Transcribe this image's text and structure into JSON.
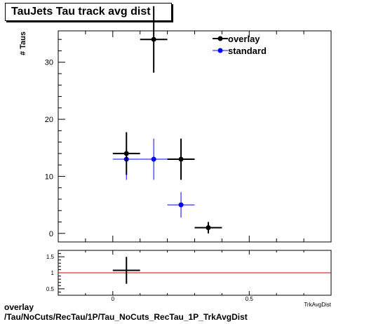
{
  "title": "TauJets Tau track avg dist",
  "footer": {
    "line1": "overlay",
    "line2": "/Tau/NoCuts/RecTau/1P/Tau_NoCuts_RecTau_1P_TrkAvgDist"
  },
  "chart_data": [
    {
      "type": "scatter",
      "title": "TauJets Tau track avg dist",
      "ylabel": "# Taus",
      "xlabel": "TrkAvgDist",
      "xlim": [
        -0.2,
        0.8
      ],
      "ylim": [
        -1.5,
        35.5
      ],
      "yticks": [
        0,
        10,
        20,
        30
      ],
      "legend_position": "top-right",
      "series": [
        {
          "name": "overlay",
          "color": "#000000",
          "points": [
            {
              "x": 0.05,
              "y": 14,
              "xerr": 0.05,
              "yerr": 3.74
            },
            {
              "x": 0.15,
              "y": 34,
              "xerr": 0.05,
              "yerr": 5.83
            },
            {
              "x": 0.25,
              "y": 13,
              "xerr": 0.05,
              "yerr": 3.61
            },
            {
              "x": 0.35,
              "y": 1,
              "xerr": 0.05,
              "yerr": 1.0
            }
          ]
        },
        {
          "name": "standard",
          "color": "#0000ff",
          "points": [
            {
              "x": 0.05,
              "y": 13,
              "xerr": 0.05,
              "yerr": 3.61
            },
            {
              "x": 0.15,
              "y": 13,
              "xerr": 0.05,
              "yerr": 3.61
            },
            {
              "x": 0.25,
              "y": 5,
              "xerr": 0.05,
              "yerr": 2.24
            }
          ]
        }
      ]
    },
    {
      "type": "scatter",
      "xlabel": "TrkAvgDist",
      "xlim": [
        -0.2,
        0.8
      ],
      "ylim": [
        0.3,
        1.7
      ],
      "xticks": [
        {
          "v": 0,
          "label": "0"
        },
        {
          "v": 0.5,
          "label": "0.5"
        }
      ],
      "yticks": [
        {
          "v": 0.5,
          "label": "0.5"
        },
        {
          "v": 1,
          "label": "1"
        },
        {
          "v": 1.5,
          "label": "1.5"
        }
      ],
      "reference_line": {
        "y": 1,
        "color": "#cc0000"
      },
      "points": [
        {
          "x": 0.05,
          "y": 1.077,
          "xerr": 0.05,
          "yerr": 0.42
        }
      ]
    }
  ]
}
